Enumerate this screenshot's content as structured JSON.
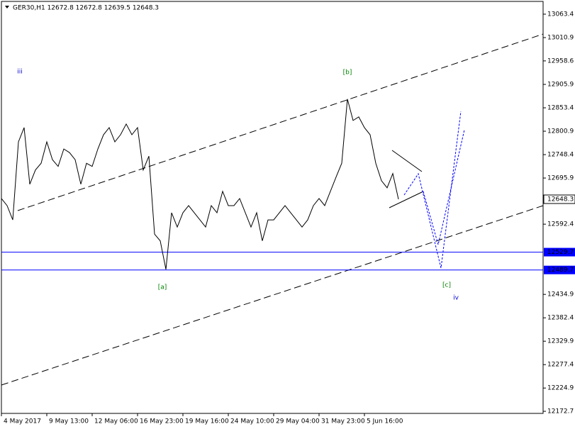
{
  "chart_data": {
    "type": "line",
    "title": "GER30,H1  12672.8 12672.8 12639.5 12648.3",
    "categories": [
      "4 May 2017",
      null,
      null,
      null,
      null,
      null,
      null,
      null,
      "9 May 13:00",
      null,
      null,
      null,
      null,
      null,
      null,
      null,
      "12 May 06:00",
      null,
      null,
      null,
      null,
      null,
      null,
      null,
      "16 May 23:00",
      null,
      null,
      null,
      null,
      null,
      null,
      null,
      "19 May 16:00",
      null,
      null,
      null,
      null,
      null,
      null,
      null,
      "24 May 10:00",
      null,
      null,
      null,
      null,
      null,
      null,
      null,
      "29 May 04:00",
      null,
      null,
      null,
      null,
      null,
      null,
      null,
      "31 May 23:00",
      null,
      null,
      null,
      null,
      null,
      null,
      null,
      "5 Jun 16:00",
      null,
      null,
      null,
      null,
      null,
      null
    ],
    "values": [
      12650,
      12634,
      12602,
      12777,
      12809,
      12682,
      12714,
      12729,
      12777,
      12737,
      12722,
      12761,
      12753,
      12737,
      12682,
      12729,
      12722,
      12761,
      12793,
      12809,
      12777,
      12793,
      12817,
      12793,
      12809,
      12714,
      12745,
      12570,
      12555,
      12491,
      12618,
      12586,
      12618,
      12634,
      12618,
      12602,
      12586,
      12634,
      12618,
      12666,
      12634,
      12634,
      12650,
      12618,
      12586,
      12618,
      12555,
      12602,
      12602,
      12618,
      12634,
      12618,
      12602,
      12586,
      12602,
      12634,
      12650,
      12634,
      12666,
      12698,
      12729,
      12873,
      12825,
      12833,
      12809,
      12793,
      12729,
      12690,
      12674,
      12706,
      12648.3
    ],
    "color": "#000000",
    "ylim": [
      12168,
      13092
    ],
    "yticks": [
      13063.4,
      13010.9,
      12958.6,
      12905.9,
      12853.4,
      12800.9,
      12748.4,
      12695.9,
      12592.4,
      12434.9,
      12382.4,
      12329.9,
      12277.4,
      12224.9,
      12172.7
    ],
    "levels": [
      12529.7,
      12489.7
    ],
    "level_color": "#0000ff",
    "last_price": 12648.3,
    "annotations": [
      {
        "text": "iii",
        "color": "#0000cc"
      },
      {
        "text": "[b]",
        "color": "#008000"
      },
      {
        "text": "[a]",
        "color": "#008000"
      },
      {
        "text": "[c]",
        "color": "#008000"
      },
      {
        "text": "iv",
        "color": "#0000cc"
      }
    ]
  }
}
